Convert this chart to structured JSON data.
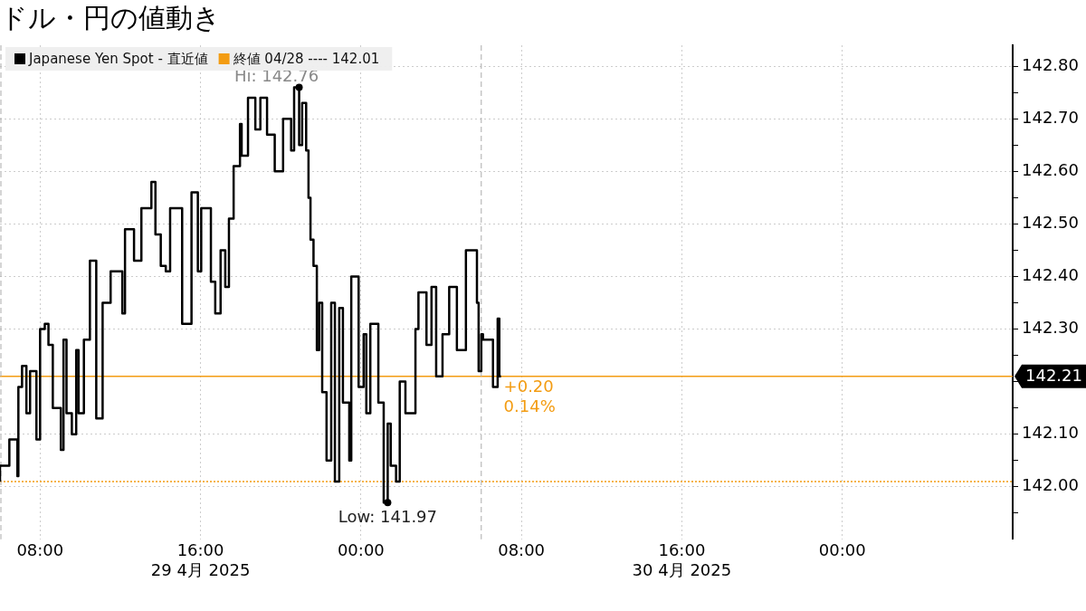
{
  "chart_data": {
    "type": "step",
    "title": "ドル・円の値動き",
    "x": [
      "2025-04-29T06:00",
      "2025-04-29T06:28",
      "2025-04-29T06:52",
      "2025-04-29T06:55",
      "2025-04-29T07:06",
      "2025-04-29T07:19",
      "2025-04-29T07:30",
      "2025-04-29T07:49",
      "2025-04-29T08:00",
      "2025-04-29T08:14",
      "2025-04-29T08:25",
      "2025-04-29T08:38",
      "2025-04-29T09:02",
      "2025-04-29T09:10",
      "2025-04-29T09:19",
      "2025-04-29T09:35",
      "2025-04-29T09:48",
      "2025-04-29T09:55",
      "2025-04-29T10:11",
      "2025-04-29T10:29",
      "2025-04-29T10:48",
      "2025-04-29T11:07",
      "2025-04-29T11:31",
      "2025-04-29T12:06",
      "2025-04-29T12:14",
      "2025-04-29T12:41",
      "2025-04-29T13:03",
      "2025-04-29T13:33",
      "2025-04-29T13:45",
      "2025-04-29T14:01",
      "2025-04-29T14:16",
      "2025-04-29T14:29",
      "2025-04-29T15:05",
      "2025-04-29T15:33",
      "2025-04-29T15:52",
      "2025-04-29T16:02",
      "2025-04-29T16:31",
      "2025-04-29T16:44",
      "2025-04-29T17:00",
      "2025-04-29T17:14",
      "2025-04-29T17:25",
      "2025-04-29T17:39",
      "2025-04-29T17:58",
      "2025-04-29T18:03",
      "2025-04-29T18:22",
      "2025-04-29T18:44",
      "2025-04-29T18:59",
      "2025-04-29T19:19",
      "2025-04-29T19:42",
      "2025-04-29T20:07",
      "2025-04-29T20:31",
      "2025-04-29T20:40",
      "2025-04-29T20:55",
      "2025-04-29T21:04",
      "2025-04-29T21:16",
      "2025-04-29T21:23",
      "2025-04-29T21:29",
      "2025-04-29T21:38",
      "2025-04-29T21:48",
      "2025-04-29T21:55",
      "2025-04-29T22:04",
      "2025-04-29T22:17",
      "2025-04-29T22:31",
      "2025-04-29T22:42",
      "2025-04-29T22:55",
      "2025-04-29T23:06",
      "2025-04-29T23:25",
      "2025-04-29T23:31",
      "2025-04-29T23:53",
      "2025-04-30T00:08",
      "2025-04-30T00:16",
      "2025-04-30T00:28",
      "2025-04-30T00:52",
      "2025-04-30T01:08",
      "2025-04-30T01:20",
      "2025-04-30T01:29",
      "2025-04-30T01:45",
      "2025-04-30T01:56",
      "2025-04-30T02:13",
      "2025-04-30T02:43",
      "2025-04-30T02:52",
      "2025-04-30T03:16",
      "2025-04-30T03:31",
      "2025-04-30T03:45",
      "2025-04-30T04:04",
      "2025-04-30T04:24",
      "2025-04-30T04:47",
      "2025-04-30T05:14",
      "2025-04-30T05:36",
      "2025-04-30T05:47",
      "2025-04-30T05:52",
      "2025-04-30T06:00",
      "2025-04-30T06:05",
      "2025-04-30T06:35",
      "2025-04-30T06:40",
      "2025-04-30T06:49",
      "2025-04-30T06:54",
      "2025-04-30T06:59"
    ],
    "series": [
      {
        "name": "Japanese Yen Spot - 直近値",
        "color": "#000000",
        "values": [
          142.01,
          142.04,
          142.09,
          142.02,
          142.19,
          142.23,
          142.14,
          142.22,
          142.09,
          142.3,
          142.31,
          142.27,
          142.15,
          142.07,
          142.28,
          142.14,
          142.1,
          142.26,
          142.14,
          142.28,
          142.43,
          142.13,
          142.35,
          142.41,
          142.33,
          142.49,
          142.43,
          142.53,
          142.58,
          142.48,
          142.42,
          142.41,
          142.53,
          142.31,
          142.56,
          142.41,
          142.53,
          142.39,
          142.33,
          142.45,
          142.38,
          142.51,
          142.61,
          142.69,
          142.63,
          142.74,
          142.68,
          142.74,
          142.67,
          142.6,
          142.7,
          142.64,
          142.76,
          142.65,
          142.73,
          142.64,
          142.55,
          142.47,
          142.42,
          142.26,
          142.35,
          142.18,
          142.05,
          142.35,
          142.01,
          142.34,
          142.16,
          142.05,
          142.4,
          142.19,
          142.29,
          142.14,
          142.31,
          142.16,
          141.97,
          142.12,
          142.04,
          142.01,
          142.2,
          142.14,
          142.3,
          142.37,
          142.27,
          142.38,
          142.21,
          142.29,
          142.38,
          142.26,
          142.45,
          142.45,
          142.35,
          142.22,
          142.29,
          142.28,
          142.19,
          142.19,
          142.32,
          142.21
        ]
      }
    ],
    "xlim": [
      "2025-04-29T06:00",
      "2025-05-01T08:30"
    ],
    "xticks": [
      {
        "value": "2025-04-29T08:00",
        "label": "08:00"
      },
      {
        "value": "2025-04-29T16:00",
        "label": "16:00\n29 4月 2025"
      },
      {
        "value": "2025-04-30T00:00",
        "label": "00:00"
      },
      {
        "value": "2025-04-30T08:00",
        "label": "08:00"
      },
      {
        "value": "2025-04-30T16:00",
        "label": "16:00\n30 4月 2025"
      },
      {
        "value": "2025-05-01T00:00",
        "label": "00:00"
      }
    ],
    "ylim": [
      141.9,
      142.84
    ],
    "yticks": [
      {
        "value": 141.95,
        "label": null
      },
      {
        "value": 142,
        "label": "142.00"
      },
      {
        "value": 142.05,
        "label": null
      },
      {
        "value": 142.1,
        "label": "142.10"
      },
      {
        "value": 142.15,
        "label": null
      },
      {
        "value": 142.2,
        "label": null
      },
      {
        "value": 142.25,
        "label": null
      },
      {
        "value": 142.3,
        "label": "142.30"
      },
      {
        "value": 142.35,
        "label": null
      },
      {
        "value": 142.4,
        "label": "142.40"
      },
      {
        "value": 142.45,
        "label": null
      },
      {
        "value": 142.5,
        "label": "142.50"
      },
      {
        "value": 142.55,
        "label": null
      },
      {
        "value": 142.6,
        "label": "142.60"
      },
      {
        "value": 142.65,
        "label": null
      },
      {
        "value": 142.7,
        "label": "142.70"
      },
      {
        "value": 142.75,
        "label": null
      },
      {
        "value": 142.8,
        "label": "142.80"
      }
    ],
    "grid": true,
    "legend": "top left",
    "ref_lines": [
      {
        "axis": "y",
        "value": 142.01,
        "label": "終値 04/28 ---- 142.01",
        "color": "#f39c12",
        "line_style": "dotted"
      },
      {
        "axis": "y",
        "value": 142.21,
        "label": "142.21",
        "color": "#f39c12",
        "line_style": "solid"
      },
      {
        "axis": "x",
        "value": "2025-04-29T06:00",
        "color": "#aaaaaa",
        "line_style": "dashed"
      },
      {
        "axis": "x",
        "value": "2025-04-30T06:00",
        "color": "#aaaaaa",
        "line_style": "dashed"
      }
    ],
    "annotations": [
      {
        "text": "Hi: 142.76",
        "x": "2025-04-29T20:55",
        "y": 142.76
      },
      {
        "text": "Low: 141.97",
        "x": "2025-04-30T01:20",
        "y": 141.97
      },
      {
        "text": "+0.20\n0.14%",
        "x": "2025-04-30T06:59",
        "y": 142.21
      }
    ]
  }
}
